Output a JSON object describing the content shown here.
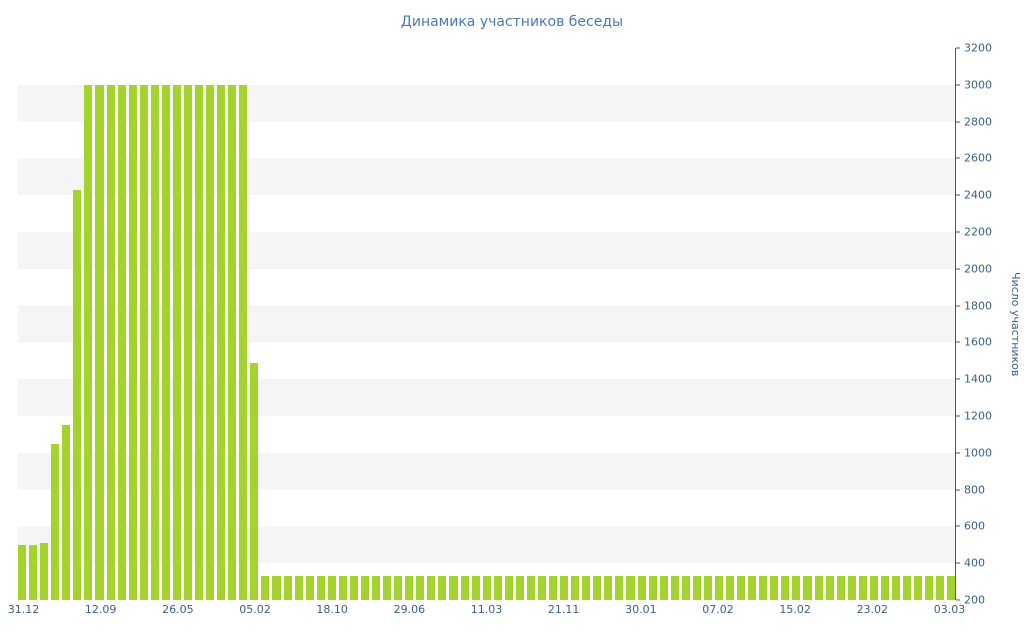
{
  "chart_data": {
    "type": "bar",
    "title": "Динамика участников беседы",
    "xlabel": "",
    "ylabel": "Число участников",
    "ylim": [
      200,
      3200
    ],
    "ytick_step": 200,
    "grid": "alternating horizontal stripes",
    "legend": "none",
    "bar_color": "#a5d32d",
    "stripe_color": "#f5f5f5",
    "axis_color": "#4a5a62",
    "label_color": "#3d5f82",
    "title_color": "#4a7ab5",
    "x_tick_labels": [
      "31.12",
      "12.09",
      "26.05",
      "05.02",
      "18.10",
      "29.06",
      "11.03",
      "21.11",
      "30.01",
      "07.02",
      "15.02",
      "23.02",
      "03.03"
    ],
    "x_tick_every": 7,
    "values": [
      500,
      500,
      510,
      1050,
      1150,
      2430,
      3000,
      3000,
      3000,
      3000,
      3000,
      3000,
      3000,
      3000,
      3000,
      3000,
      3000,
      3000,
      3000,
      3000,
      3000,
      1490,
      330,
      330,
      330,
      330,
      330,
      330,
      330,
      330,
      330,
      330,
      330,
      330,
      330,
      330,
      330,
      330,
      330,
      330,
      330,
      330,
      330,
      330,
      330,
      330,
      330,
      330,
      330,
      330,
      330,
      330,
      330,
      330,
      330,
      330,
      330,
      330,
      330,
      330,
      330,
      330,
      330,
      330,
      330,
      330,
      330,
      330,
      330,
      330,
      330,
      330,
      330,
      330,
      330,
      330,
      330,
      330,
      330,
      330,
      330,
      330,
      330,
      330,
      330
    ]
  }
}
